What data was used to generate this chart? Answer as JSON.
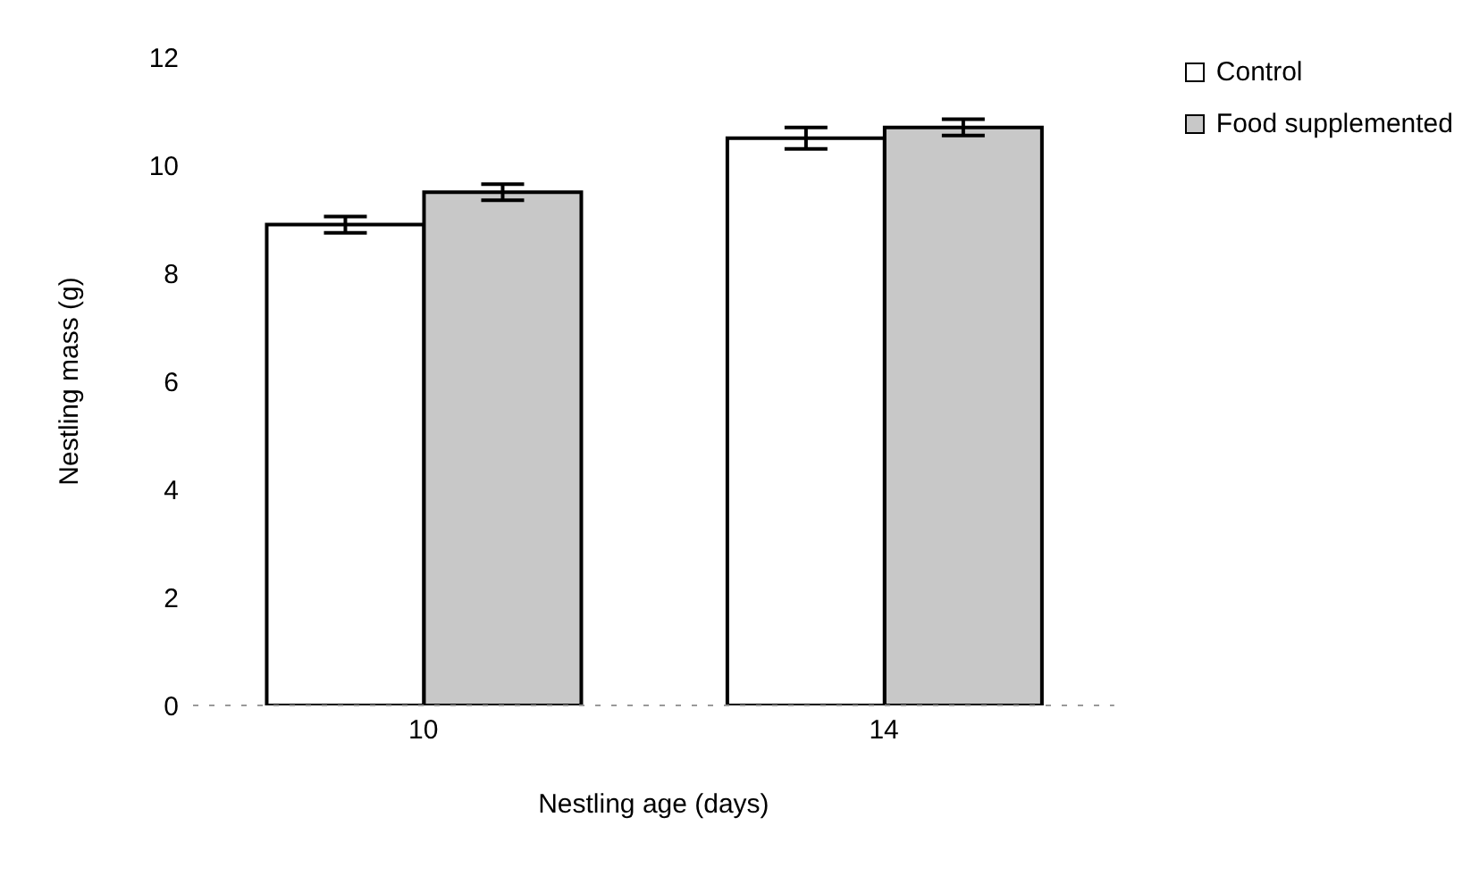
{
  "chart_data": {
    "type": "bar",
    "xlabel": "Nestling age (days)",
    "ylabel": "Nestling mass (g)",
    "categories": [
      "10",
      "14"
    ],
    "series": [
      {
        "name": "Control",
        "color": "#ffffff",
        "values": [
          8.9,
          10.5
        ],
        "errors": [
          0.15,
          0.2
        ]
      },
      {
        "name": "Food supplemented",
        "color": "#c8c8c8",
        "values": [
          9.5,
          10.7
        ],
        "errors": [
          0.15,
          0.15
        ]
      }
    ],
    "ylim": [
      0,
      12
    ],
    "yticks": [
      0,
      2,
      4,
      6,
      8,
      10,
      12
    ],
    "grid": false,
    "legend": "top right"
  }
}
